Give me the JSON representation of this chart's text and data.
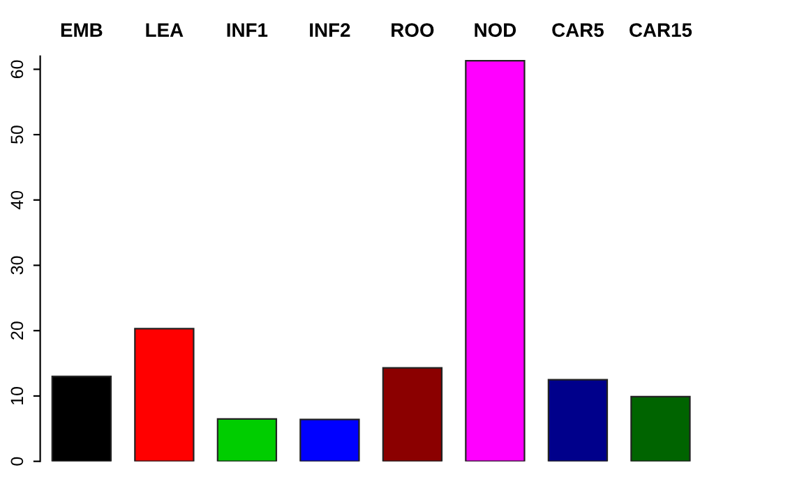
{
  "chart_data": {
    "type": "bar",
    "categories": [
      "EMB",
      "LEA",
      "INF1",
      "INF2",
      "ROO",
      "NOD",
      "CAR5",
      "CAR15"
    ],
    "values": [
      13.0,
      20.3,
      6.5,
      6.4,
      14.3,
      61.3,
      12.5,
      9.9
    ],
    "colors": [
      "#000000",
      "#ff0000",
      "#00cd00",
      "#0000ff",
      "#8b0000",
      "#ff00ff",
      "#00008b",
      "#006400"
    ],
    "ylim": [
      0,
      62
    ],
    "yticks": [
      0,
      10,
      20,
      30,
      40,
      50,
      60
    ],
    "grid": false
  }
}
